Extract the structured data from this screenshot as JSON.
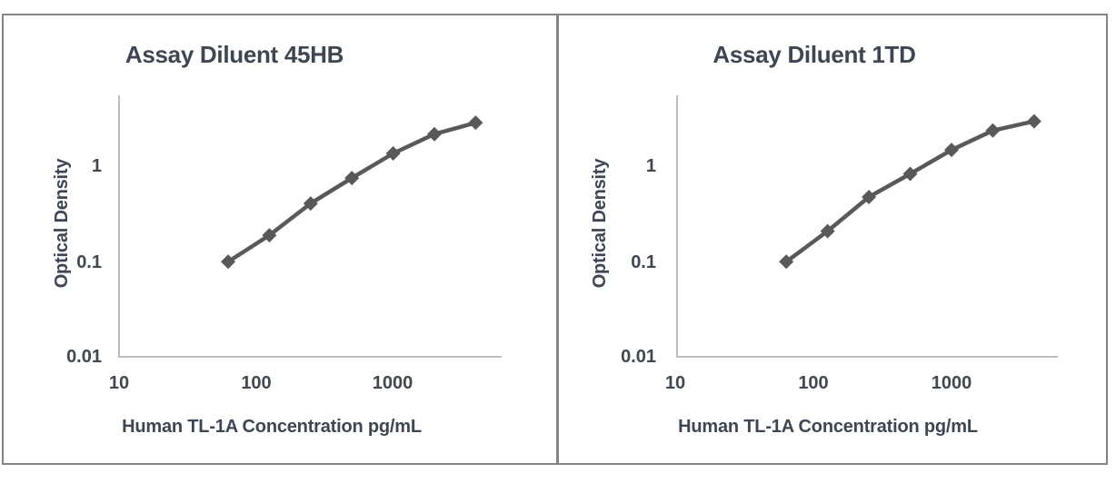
{
  "figure": {
    "background": "#ffffff",
    "frame_border_color": "#848484",
    "divider_color": "#848484",
    "text_color": "#3e4653",
    "series_color": "#58595b"
  },
  "chart_data": [
    {
      "type": "line",
      "title": "Assay Diluent 45HB",
      "xlabel": "Human TL-1A Concentration pg/mL",
      "ylabel": "Optical Density",
      "x_scale": "log",
      "y_scale": "log",
      "xlim": [
        10,
        6300
      ],
      "ylim": [
        0.01,
        5.6
      ],
      "x_tick_labels": [
        "10",
        "100",
        "1000"
      ],
      "y_tick_labels": [
        "1",
        "0.1",
        "0.01"
      ],
      "grid": false,
      "legend": false,
      "series": [
        {
          "marker": "diamond",
          "color": "#58595b",
          "x": [
            62.5,
            125,
            250,
            500,
            1000,
            2000,
            4000
          ],
          "y": [
            0.1,
            0.19,
            0.41,
            0.76,
            1.38,
            2.2,
            2.9
          ]
        }
      ]
    },
    {
      "type": "line",
      "title": "Assay Diluent 1TD",
      "xlabel": "Human TL-1A Concentration pg/mL",
      "ylabel": "Optical Density",
      "x_scale": "log",
      "y_scale": "log",
      "xlim": [
        10,
        6300
      ],
      "ylim": [
        0.01,
        5.6
      ],
      "x_tick_labels": [
        "10",
        "100",
        "1000"
      ],
      "y_tick_labels": [
        "1",
        "0.1",
        "0.01"
      ],
      "grid": false,
      "legend": false,
      "series": [
        {
          "marker": "diamond",
          "color": "#58595b",
          "x": [
            62.5,
            125,
            250,
            500,
            1000,
            2000,
            4000
          ],
          "y": [
            0.1,
            0.21,
            0.48,
            0.84,
            1.5,
            2.4,
            3.0
          ]
        }
      ]
    }
  ]
}
